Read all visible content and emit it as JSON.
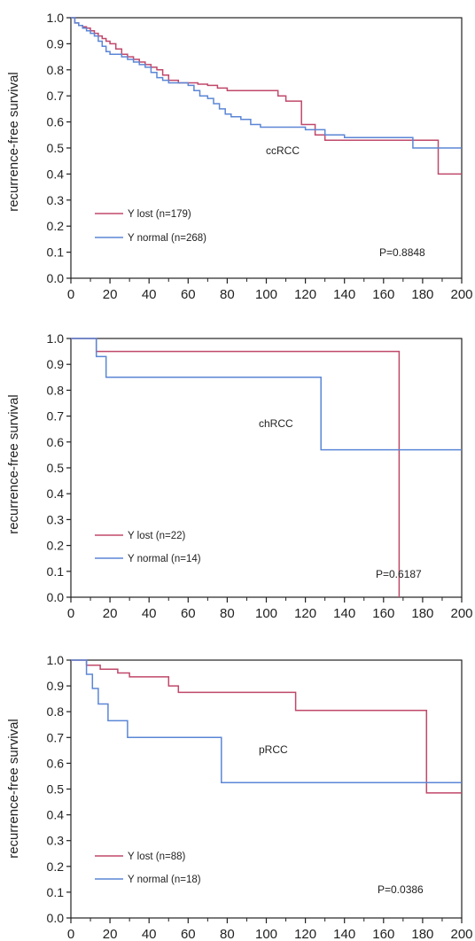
{
  "chart_data": [
    {
      "type": "line",
      "subtype": "kaplan-meier",
      "panel_label": "ccRCC",
      "ylabel": "recurrence-free survival",
      "xlim": [
        0,
        200
      ],
      "ylim": [
        0,
        1
      ],
      "x_ticks": [
        "0",
        "20",
        "40",
        "60",
        "80",
        "100",
        "120",
        "140",
        "160",
        "180",
        "200"
      ],
      "y_ticks": [
        "0.0",
        "0.1",
        "0.2",
        "0.3",
        "0.4",
        "0.5",
        "0.6",
        "0.7",
        "0.8",
        "0.9",
        "1.0"
      ],
      "p_value": "P=0.8848",
      "grid": false,
      "legend_position": "lower-left",
      "series": [
        {
          "name": "Y lost (n=179)",
          "color": "#c0486a",
          "x": [
            0,
            2,
            4,
            6,
            8,
            10,
            12,
            14,
            16,
            18,
            20,
            23,
            26,
            29,
            32,
            35,
            38,
            41,
            44,
            47,
            50,
            55,
            60,
            65,
            70,
            75,
            80,
            85,
            90,
            95,
            106,
            110,
            118,
            125,
            130,
            140,
            150,
            160,
            170,
            180,
            188,
            200
          ],
          "y": [
            1.0,
            0.98,
            0.97,
            0.965,
            0.96,
            0.95,
            0.94,
            0.93,
            0.92,
            0.91,
            0.9,
            0.88,
            0.86,
            0.85,
            0.84,
            0.83,
            0.82,
            0.81,
            0.8,
            0.78,
            0.76,
            0.75,
            0.75,
            0.745,
            0.74,
            0.73,
            0.72,
            0.72,
            0.72,
            0.72,
            0.7,
            0.68,
            0.59,
            0.55,
            0.53,
            0.53,
            0.53,
            0.53,
            0.53,
            0.53,
            0.4,
            0.4
          ]
        },
        {
          "name": "Y normal (n=268)",
          "color": "#5b86d6",
          "x": [
            0,
            2,
            4,
            6,
            8,
            10,
            12,
            14,
            16,
            18,
            20,
            23,
            26,
            29,
            32,
            35,
            38,
            41,
            44,
            47,
            50,
            55,
            60,
            63,
            66,
            70,
            73,
            76,
            79,
            82,
            87,
            92,
            97,
            100,
            110,
            120,
            130,
            140,
            150,
            160,
            170,
            175,
            200
          ],
          "y": [
            1.0,
            0.98,
            0.97,
            0.96,
            0.95,
            0.94,
            0.93,
            0.91,
            0.89,
            0.87,
            0.86,
            0.86,
            0.85,
            0.84,
            0.83,
            0.82,
            0.81,
            0.79,
            0.77,
            0.76,
            0.75,
            0.75,
            0.74,
            0.72,
            0.7,
            0.69,
            0.67,
            0.65,
            0.63,
            0.62,
            0.61,
            0.59,
            0.58,
            0.58,
            0.58,
            0.57,
            0.55,
            0.54,
            0.54,
            0.54,
            0.54,
            0.5,
            0.5
          ]
        }
      ]
    },
    {
      "type": "line",
      "subtype": "kaplan-meier",
      "panel_label": "chRCC",
      "ylabel": "recurrence-free survival",
      "xlim": [
        0,
        200
      ],
      "ylim": [
        0,
        1
      ],
      "x_ticks": [
        "0",
        "20",
        "40",
        "60",
        "80",
        "100",
        "120",
        "140",
        "160",
        "180",
        "200"
      ],
      "y_ticks": [
        "0.0",
        "0.1",
        "0.2",
        "0.3",
        "0.4",
        "0.5",
        "0.6",
        "0.7",
        "0.8",
        "0.9",
        "1.0"
      ],
      "p_value": "P=0.6187",
      "grid": false,
      "legend_position": "lower-left",
      "series": [
        {
          "name": "Y lost (n=22)",
          "color": "#c0486a",
          "x": [
            0,
            13,
            13,
            168,
            168
          ],
          "y": [
            1.0,
            1.0,
            0.95,
            0.95,
            0.0
          ]
        },
        {
          "name": "Y normal (n=14)",
          "color": "#5b86d6",
          "x": [
            0,
            13,
            13,
            18,
            18,
            128,
            128,
            200
          ],
          "y": [
            1.0,
            1.0,
            0.93,
            0.93,
            0.85,
            0.85,
            0.57,
            0.57
          ]
        }
      ]
    },
    {
      "type": "line",
      "subtype": "kaplan-meier",
      "panel_label": "pRCC",
      "ylabel": "recurrence-free survival",
      "xlim": [
        0,
        200
      ],
      "ylim": [
        0,
        1
      ],
      "x_ticks": [
        "0",
        "20",
        "40",
        "60",
        "80",
        "100",
        "120",
        "140",
        "160",
        "180",
        "200"
      ],
      "y_ticks": [
        "0.0",
        "0.1",
        "0.2",
        "0.3",
        "0.4",
        "0.5",
        "0.6",
        "0.7",
        "0.8",
        "0.9",
        "1.0"
      ],
      "p_value": "P=0.0386",
      "grid": false,
      "legend_position": "lower-left",
      "series": [
        {
          "name": "Y lost (n=88)",
          "color": "#c0486a",
          "x": [
            0,
            8,
            8,
            15,
            15,
            24,
            24,
            30,
            30,
            50,
            50,
            55,
            55,
            115,
            115,
            182,
            182,
            200
          ],
          "y": [
            1.0,
            1.0,
            0.98,
            0.98,
            0.965,
            0.965,
            0.95,
            0.95,
            0.935,
            0.935,
            0.9,
            0.9,
            0.875,
            0.875,
            0.805,
            0.805,
            0.485,
            0.485
          ]
        },
        {
          "name": "Y normal (n=18)",
          "color": "#5b86d6",
          "x": [
            0,
            8,
            8,
            11,
            11,
            14,
            14,
            19,
            19,
            29,
            29,
            77,
            77,
            200
          ],
          "y": [
            1.0,
            1.0,
            0.945,
            0.945,
            0.89,
            0.89,
            0.83,
            0.83,
            0.765,
            0.765,
            0.7,
            0.7,
            0.525,
            0.525
          ]
        }
      ]
    }
  ]
}
